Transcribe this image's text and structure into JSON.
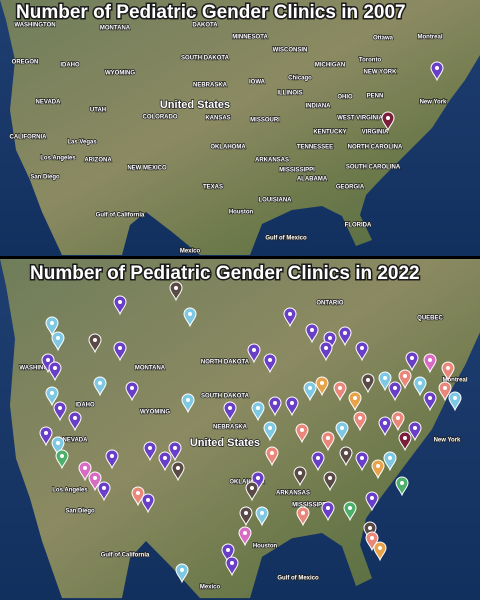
{
  "panels": [
    {
      "title": "Number of Pediatric Gender Clinics in 2007",
      "labels": [
        "WASHINGTON",
        "MONTANA",
        "DAKOTA",
        "MINNESOTA",
        "WISCONSIN",
        "Ottawa",
        "Montreal",
        "OREGON",
        "IDAHO",
        "SOUTH DAKOTA",
        "WYOMING",
        "MICHIGAN",
        "Toronto",
        "Chicago",
        "NEW YORK",
        "NEBRASKA",
        "IOWA",
        "ILLINOIS",
        "OHIO",
        "PENN",
        "NEVADA",
        "UTAH",
        "United States",
        "COLORADO",
        "KANSAS",
        "MISSOURI",
        "INDIANA",
        "WEST VIRGINIA",
        "New York",
        "CALIFORNIA",
        "Las Vegas",
        "KENTUCKY",
        "VIRGINIA",
        "OKLAHOMA",
        "TENNESSEE",
        "NORTH CAROLINA",
        "Los Angeles",
        "ARIZONA",
        "NEW MEXICO",
        "ARKANSAS",
        "MISSISSIPPI",
        "SOUTH CAROLINA",
        "San Diego",
        "ALABAMA",
        "GEORGIA",
        "TEXAS",
        "LOUISIANA",
        "Houston",
        "FLORIDA",
        "Gulf of Mexico",
        "Gulf of California",
        "Mexico"
      ]
    },
    {
      "title": "Number of Pediatric Gender Clinics in 2022",
      "labels": [
        "ONTARIO",
        "QUEBEC",
        "WASHINGTON",
        "MONTANA",
        "NORTH DAKOTA",
        "SOUTH DAKOTA",
        "IDAHO",
        "WYOMING",
        "NEBRASKA",
        "NEVADA",
        "United States",
        "OKLAHOMA",
        "ARKANSAS",
        "MISSISSIPPI",
        "Los Angeles",
        "San Diego",
        "Houston",
        "Gulf of Mexico",
        "Mexico",
        "New York",
        "Montreal",
        "Gulf of California"
      ]
    }
  ]
}
